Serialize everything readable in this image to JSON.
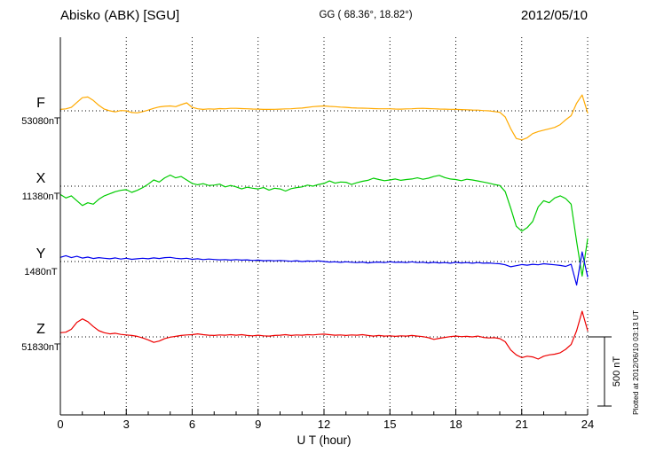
{
  "footer_note": "Plotted at 2012/06/10 03:13 UT",
  "chart_data": {
    "type": "line",
    "title": "Abisko (ABK)  [SGU]",
    "coords": "GG ( 68.36°,  18.82°)",
    "date": "2012/05/10",
    "xlabel": "U T (hour)",
    "x_start": 0,
    "x_end": 24,
    "x_step": 0.25,
    "x_minor_step": 1,
    "x_ticks": [
      0,
      3,
      6,
      9,
      12,
      15,
      18,
      21,
      24
    ],
    "grid": "dotted-vertical-every-3h-and-dotted-baselines",
    "legend_position": "left-of-each-baseline",
    "scale_bar": {
      "label": "500 nT",
      "nT": 500
    },
    "series": [
      {
        "name": "F",
        "color": "#ffaa00",
        "baseline_nT": 53080,
        "baseline_label": "53080nT",
        "delta_nT": [
          10,
          14,
          25,
          60,
          95,
          100,
          75,
          40,
          12,
          0,
          -8,
          2,
          0,
          -12,
          -15,
          -6,
          5,
          18,
          28,
          33,
          35,
          30,
          45,
          58,
          25,
          15,
          10,
          14,
          12,
          16,
          15,
          18,
          18,
          16,
          15,
          13,
          12,
          10,
          10,
          11,
          12,
          14,
          15,
          18,
          20,
          25,
          30,
          33,
          35,
          32,
          30,
          27,
          25,
          22,
          20,
          19,
          18,
          16,
          15,
          15,
          15,
          13,
          12,
          14,
          15,
          17,
          18,
          16,
          15,
          13,
          12,
          11,
          10,
          9,
          8,
          6,
          5,
          2,
          0,
          -5,
          -10,
          -45,
          -130,
          -200,
          -210,
          -195,
          -165,
          -150,
          -140,
          -130,
          -120,
          -100,
          -65,
          -35,
          55,
          115,
          -15
        ]
      },
      {
        "name": "X",
        "color": "#00cc00",
        "baseline_nT": 11380,
        "baseline_label": "11380nT",
        "delta_nT": [
          -60,
          -85,
          -70,
          -105,
          -140,
          -120,
          -130,
          -95,
          -70,
          -55,
          -40,
          -30,
          -25,
          -45,
          -30,
          -10,
          15,
          45,
          30,
          60,
          80,
          60,
          70,
          45,
          20,
          10,
          18,
          5,
          8,
          15,
          -5,
          5,
          -5,
          -20,
          -8,
          -15,
          -20,
          -10,
          -28,
          -15,
          -20,
          -35,
          -18,
          -10,
          -5,
          8,
          0,
          12,
          20,
          38,
          22,
          30,
          28,
          12,
          25,
          35,
          42,
          58,
          48,
          40,
          45,
          52,
          42,
          48,
          52,
          60,
          50,
          58,
          70,
          78,
          62,
          52,
          48,
          40,
          50,
          45,
          38,
          30,
          22,
          12,
          5,
          -40,
          -160,
          -290,
          -325,
          -300,
          -255,
          -150,
          -105,
          -120,
          -85,
          -70,
          -90,
          -130,
          -400,
          -650,
          -380
        ]
      },
      {
        "name": "Y",
        "color": "#0000ee",
        "baseline_nT": 1480,
        "baseline_label": "1480nT",
        "delta_nT": [
          30,
          42,
          28,
          38,
          25,
          32,
          22,
          28,
          24,
          20,
          26,
          18,
          24,
          16,
          20,
          24,
          20,
          26,
          22,
          28,
          30,
          24,
          20,
          24,
          16,
          20,
          14,
          18,
          15,
          12,
          14,
          10,
          14,
          10,
          12,
          8,
          10,
          6,
          8,
          5,
          8,
          5,
          2,
          6,
          0,
          4,
          2,
          5,
          0,
          -4,
          -2,
          -6,
          -2,
          -5,
          -8,
          -4,
          -10,
          -6,
          -4,
          -8,
          -2,
          -6,
          -4,
          -8,
          -2,
          -8,
          -5,
          -10,
          -6,
          -10,
          -8,
          -12,
          -6,
          -10,
          -8,
          -12,
          -8,
          -12,
          -10,
          -14,
          -16,
          -24,
          -38,
          -30,
          -22,
          -26,
          -20,
          -24,
          -16,
          -20,
          -24,
          -28,
          -35,
          -20,
          -170,
          70,
          -110
        ]
      },
      {
        "name": "Z",
        "color": "#ee0000",
        "baseline_nT": 51830,
        "baseline_label": "51830nT",
        "delta_nT": [
          30,
          34,
          55,
          105,
          130,
          110,
          75,
          45,
          30,
          22,
          26,
          18,
          14,
          10,
          4,
          -8,
          -22,
          -40,
          -30,
          -12,
          -2,
          4,
          10,
          14,
          16,
          22,
          16,
          12,
          10,
          14,
          12,
          16,
          12,
          16,
          10,
          8,
          12,
          8,
          6,
          10,
          12,
          16,
          10,
          14,
          12,
          16,
          14,
          18,
          20,
          16,
          12,
          14,
          10,
          14,
          12,
          16,
          10,
          6,
          10,
          6,
          8,
          4,
          8,
          6,
          10,
          6,
          2,
          -6,
          -18,
          -10,
          -4,
          2,
          6,
          2,
          4,
          0,
          6,
          -4,
          -8,
          -6,
          -12,
          -35,
          -95,
          -130,
          -150,
          -140,
          -145,
          -160,
          -140,
          -130,
          -125,
          -115,
          -90,
          -55,
          45,
          185,
          45
        ]
      }
    ]
  }
}
